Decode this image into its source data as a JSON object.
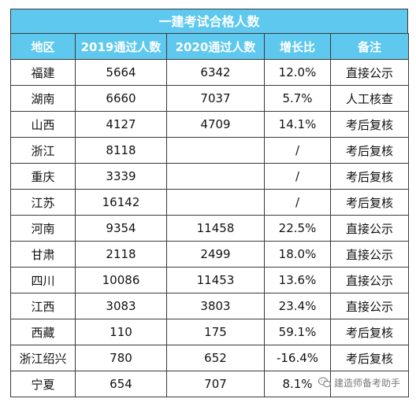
{
  "title": "一建考试合格人数",
  "headers": [
    "地区",
    "2019通过人数",
    "2020通过人数",
    "增长比",
    "备注"
  ],
  "rows": [
    {
      "region": "福建",
      "y2019": "5664",
      "y2020": "6342",
      "growth": "12.0%",
      "note": "直接公示"
    },
    {
      "region": "湖南",
      "y2019": "6660",
      "y2020": "7037",
      "growth": "5.7%",
      "note": "人工核查"
    },
    {
      "region": "山西",
      "y2019": "4127",
      "y2020": "4709",
      "growth": "14.1%",
      "note": "考后复核"
    },
    {
      "region": "浙江",
      "y2019": "8118",
      "y2020": "",
      "growth": "/",
      "note": "考后复核"
    },
    {
      "region": "重庆",
      "y2019": "3339",
      "y2020": "",
      "growth": "/",
      "note": "考后复核"
    },
    {
      "region": "江苏",
      "y2019": "16142",
      "y2020": "",
      "growth": "/",
      "note": "考后复核"
    },
    {
      "region": "河南",
      "y2019": "9354",
      "y2020": "11458",
      "growth": "22.5%",
      "note": "直接公示"
    },
    {
      "region": "甘肃",
      "y2019": "2118",
      "y2020": "2499",
      "growth": "18.0%",
      "note": "直接公示"
    },
    {
      "region": "四川",
      "y2019": "10086",
      "y2020": "11453",
      "growth": "13.6%",
      "note": "直接公示"
    },
    {
      "region": "江西",
      "y2019": "3083",
      "y2020": "3803",
      "growth": "23.4%",
      "note": "直接公示"
    },
    {
      "region": "西藏",
      "y2019": "110",
      "y2020": "175",
      "growth": "59.1%",
      "note": "考后复核"
    },
    {
      "region": "浙江绍兴",
      "y2019": "780",
      "y2020": "652",
      "growth": "-16.4%",
      "note": "考后复核"
    },
    {
      "region": "宁夏",
      "y2019": "654",
      "y2020": "707",
      "growth": "8.1%",
      "note": ""
    }
  ],
  "watermark": {
    "text": "建造师备考助手",
    "icon": "wechat-icon"
  },
  "colors": {
    "header_bg": "#5ec8ee",
    "header_text": "#ffffff",
    "border": "#3a3a3a"
  }
}
